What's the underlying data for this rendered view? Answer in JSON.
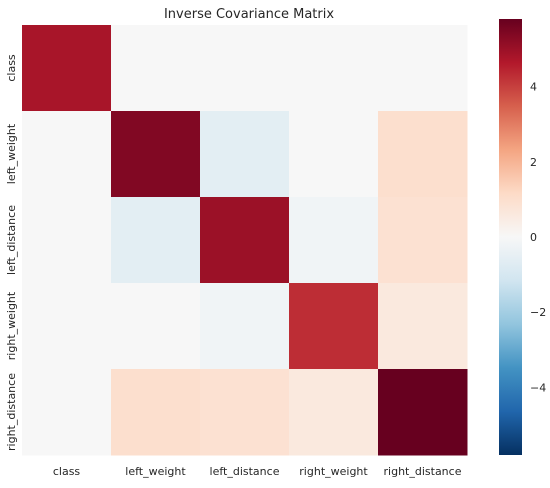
{
  "chart_data": {
    "type": "heatmap",
    "title": "Inverse Covariance Matrix",
    "xlabel": "",
    "ylabel": "",
    "row_labels": [
      "class",
      "left_weight",
      "left_distance",
      "right_weight",
      "right_distance"
    ],
    "col_labels": [
      "class",
      "left_weight",
      "left_distance",
      "right_weight",
      "right_distance"
    ],
    "values": [
      [
        4.8,
        0.0,
        0.0,
        0.0,
        0.0
      ],
      [
        0.0,
        5.4,
        -0.6,
        0.0,
        1.0
      ],
      [
        0.0,
        -0.6,
        5.0,
        -0.2,
        0.9
      ],
      [
        0.0,
        0.0,
        -0.2,
        4.3,
        0.6
      ],
      [
        0.0,
        1.0,
        0.9,
        0.6,
        5.8
      ]
    ],
    "colorbar": {
      "range": [
        -5.8,
        5.8
      ],
      "ticks": [
        -4,
        -2,
        0,
        2,
        4
      ],
      "tick_labels": [
        "−4",
        "−2",
        "0",
        "2",
        "4"
      ],
      "colormap": "RdBu_r"
    },
    "grid": false
  }
}
